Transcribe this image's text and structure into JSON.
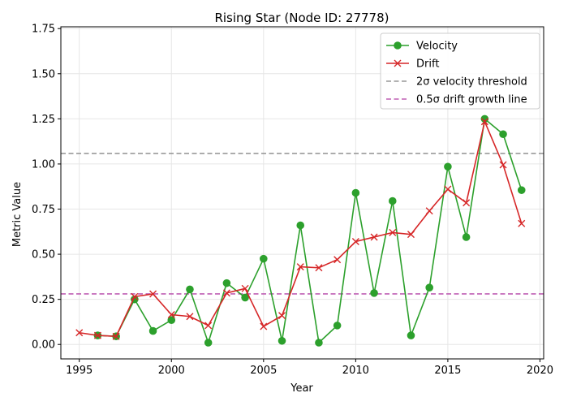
{
  "chart_data": {
    "type": "line",
    "title": "Rising Star (Node ID: 27778)",
    "xlabel": "Year",
    "ylabel": "Metric Value",
    "xlim": [
      1994,
      2020.2
    ],
    "ylim": [
      -0.08,
      1.76
    ],
    "xticks": [
      1995,
      2000,
      2005,
      2010,
      2015,
      2020
    ],
    "yticks": [
      0.0,
      0.25,
      0.5,
      0.75,
      1.0,
      1.25,
      1.5,
      1.75
    ],
    "ytick_labels": [
      "0.00",
      "0.25",
      "0.50",
      "0.75",
      "1.00",
      "1.25",
      "1.50",
      "1.75"
    ],
    "grid": true,
    "legend_position": "upper right",
    "series": [
      {
        "name": "Velocity",
        "color": "#2ca02c",
        "marker": "circle",
        "x": [
          1996,
          1997,
          1998,
          1999,
          2000,
          2001,
          2002,
          2003,
          2004,
          2005,
          2006,
          2007,
          2008,
          2009,
          2010,
          2011,
          2012,
          2013,
          2014,
          2015,
          2016,
          2017,
          2018,
          2019
        ],
        "y": [
          0.05,
          0.045,
          0.25,
          0.075,
          0.135,
          0.305,
          0.01,
          0.34,
          0.26,
          0.475,
          0.02,
          0.66,
          0.01,
          0.105,
          0.84,
          0.285,
          0.795,
          0.05,
          0.315,
          0.985,
          0.595,
          1.25,
          1.165,
          0.855
        ]
      },
      {
        "name": "Drift",
        "color": "#d62728",
        "marker": "x",
        "x": [
          1995,
          1996,
          1997,
          1998,
          1999,
          2000,
          2001,
          2002,
          2003,
          2004,
          2005,
          2006,
          2007,
          2008,
          2009,
          2010,
          2011,
          2012,
          2013,
          2014,
          2015,
          2016,
          2017,
          2018,
          2019
        ],
        "y": [
          0.065,
          0.05,
          0.045,
          0.265,
          0.28,
          0.165,
          0.155,
          0.105,
          0.285,
          0.31,
          0.1,
          0.16,
          0.43,
          0.425,
          0.47,
          0.57,
          0.595,
          0.62,
          0.61,
          0.74,
          0.86,
          0.785,
          1.235,
          0.995,
          0.67
        ]
      }
    ],
    "reference_lines": [
      {
        "name": "2σ velocity threshold",
        "y": 1.058,
        "color": "#999999"
      },
      {
        "name": "0.5σ drift growth line",
        "y": 0.28,
        "color": "#bf5fb4"
      }
    ]
  }
}
